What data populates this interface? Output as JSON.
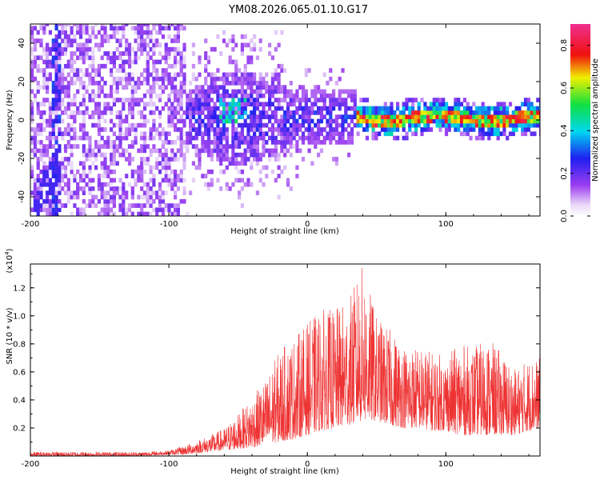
{
  "title": "YM08.2026.065.01.10.G17",
  "chart_data": [
    {
      "type": "heatmap",
      "name": "spectrogram",
      "xlabel": "Height of straight line (km)",
      "ylabel": "Frequency (Hz)",
      "xlim": [
        -200,
        168
      ],
      "ylim": [
        -50,
        50
      ],
      "xticks": [
        -200,
        -100,
        0,
        100
      ],
      "yticks": [
        -40,
        -20,
        0,
        20,
        40
      ],
      "colorbar": {
        "label": "Normalized spectral amplitude",
        "range": [
          0,
          0.9
        ],
        "ticks": [
          "0.0",
          "0.2",
          "0.4",
          "0.6",
          "0.8"
        ],
        "tick_values": [
          0.0,
          0.2,
          0.4,
          0.6,
          0.8
        ],
        "colormap": "rainbow (white/violet low, blue, cyan, green, yellow, red, magenta high)"
      },
      "description_regions": [
        {
          "x_range": [
            -200,
            -90
          ],
          "y_range": [
            -50,
            50
          ],
          "amplitude": [
            0.02,
            0.15
          ],
          "note": "diffuse noise"
        },
        {
          "x_range": [
            -90,
            0
          ],
          "y_range": [
            -20,
            20
          ],
          "amplitude": [
            0.05,
            0.35
          ],
          "note": "broad signal"
        },
        {
          "x_range": [
            0,
            168
          ],
          "y_range": [
            -8,
            8
          ],
          "amplitude": [
            0.1,
            0.9
          ],
          "note": "concentrated signal near 0 Hz"
        }
      ]
    },
    {
      "type": "line",
      "name": "snr",
      "xlabel": "Height of straight line (km)",
      "ylabel": "SNR (10 * v/v)",
      "y_multiplier": "(x10⁴)",
      "y_multiplier_base": "(x10",
      "y_multiplier_exp": "4",
      "y_multiplier_close": ")",
      "xlim": [
        -200,
        168
      ],
      "ylim": [
        0,
        1.37
      ],
      "xticks": [
        -200,
        -100,
        0,
        100
      ],
      "yticks": [
        0.2,
        0.4,
        0.6,
        0.8,
        1.0,
        1.2
      ],
      "ytick_labels": [
        "0.2",
        "0.4",
        "0.6",
        "0.8",
        "1.0",
        "1.2"
      ],
      "color": "#ee3333",
      "envelope": {
        "x": [
          -200,
          -120,
          -100,
          -90,
          -80,
          -70,
          -60,
          -50,
          -40,
          -30,
          -20,
          -10,
          0,
          10,
          20,
          30,
          40,
          50,
          60,
          70,
          80,
          90,
          100,
          110,
          120,
          130,
          140,
          150,
          160,
          168
        ],
        "min": [
          0.0,
          0.0,
          0.01,
          0.01,
          0.02,
          0.03,
          0.04,
          0.05,
          0.06,
          0.08,
          0.1,
          0.12,
          0.15,
          0.18,
          0.2,
          0.22,
          0.25,
          0.25,
          0.22,
          0.2,
          0.2,
          0.18,
          0.18,
          0.15,
          0.15,
          0.15,
          0.15,
          0.15,
          0.18,
          0.2
        ],
        "max": [
          0.03,
          0.03,
          0.04,
          0.07,
          0.11,
          0.15,
          0.2,
          0.3,
          0.42,
          0.55,
          0.76,
          0.85,
          0.95,
          1.05,
          1.05,
          1.12,
          1.37,
          1.0,
          0.9,
          0.8,
          0.78,
          0.75,
          0.72,
          0.8,
          0.78,
          0.84,
          0.75,
          0.62,
          0.7,
          0.7
        ]
      }
    }
  ],
  "colors": {
    "line": "#ee3333",
    "frame": "#000000",
    "background": "#ffffff"
  }
}
